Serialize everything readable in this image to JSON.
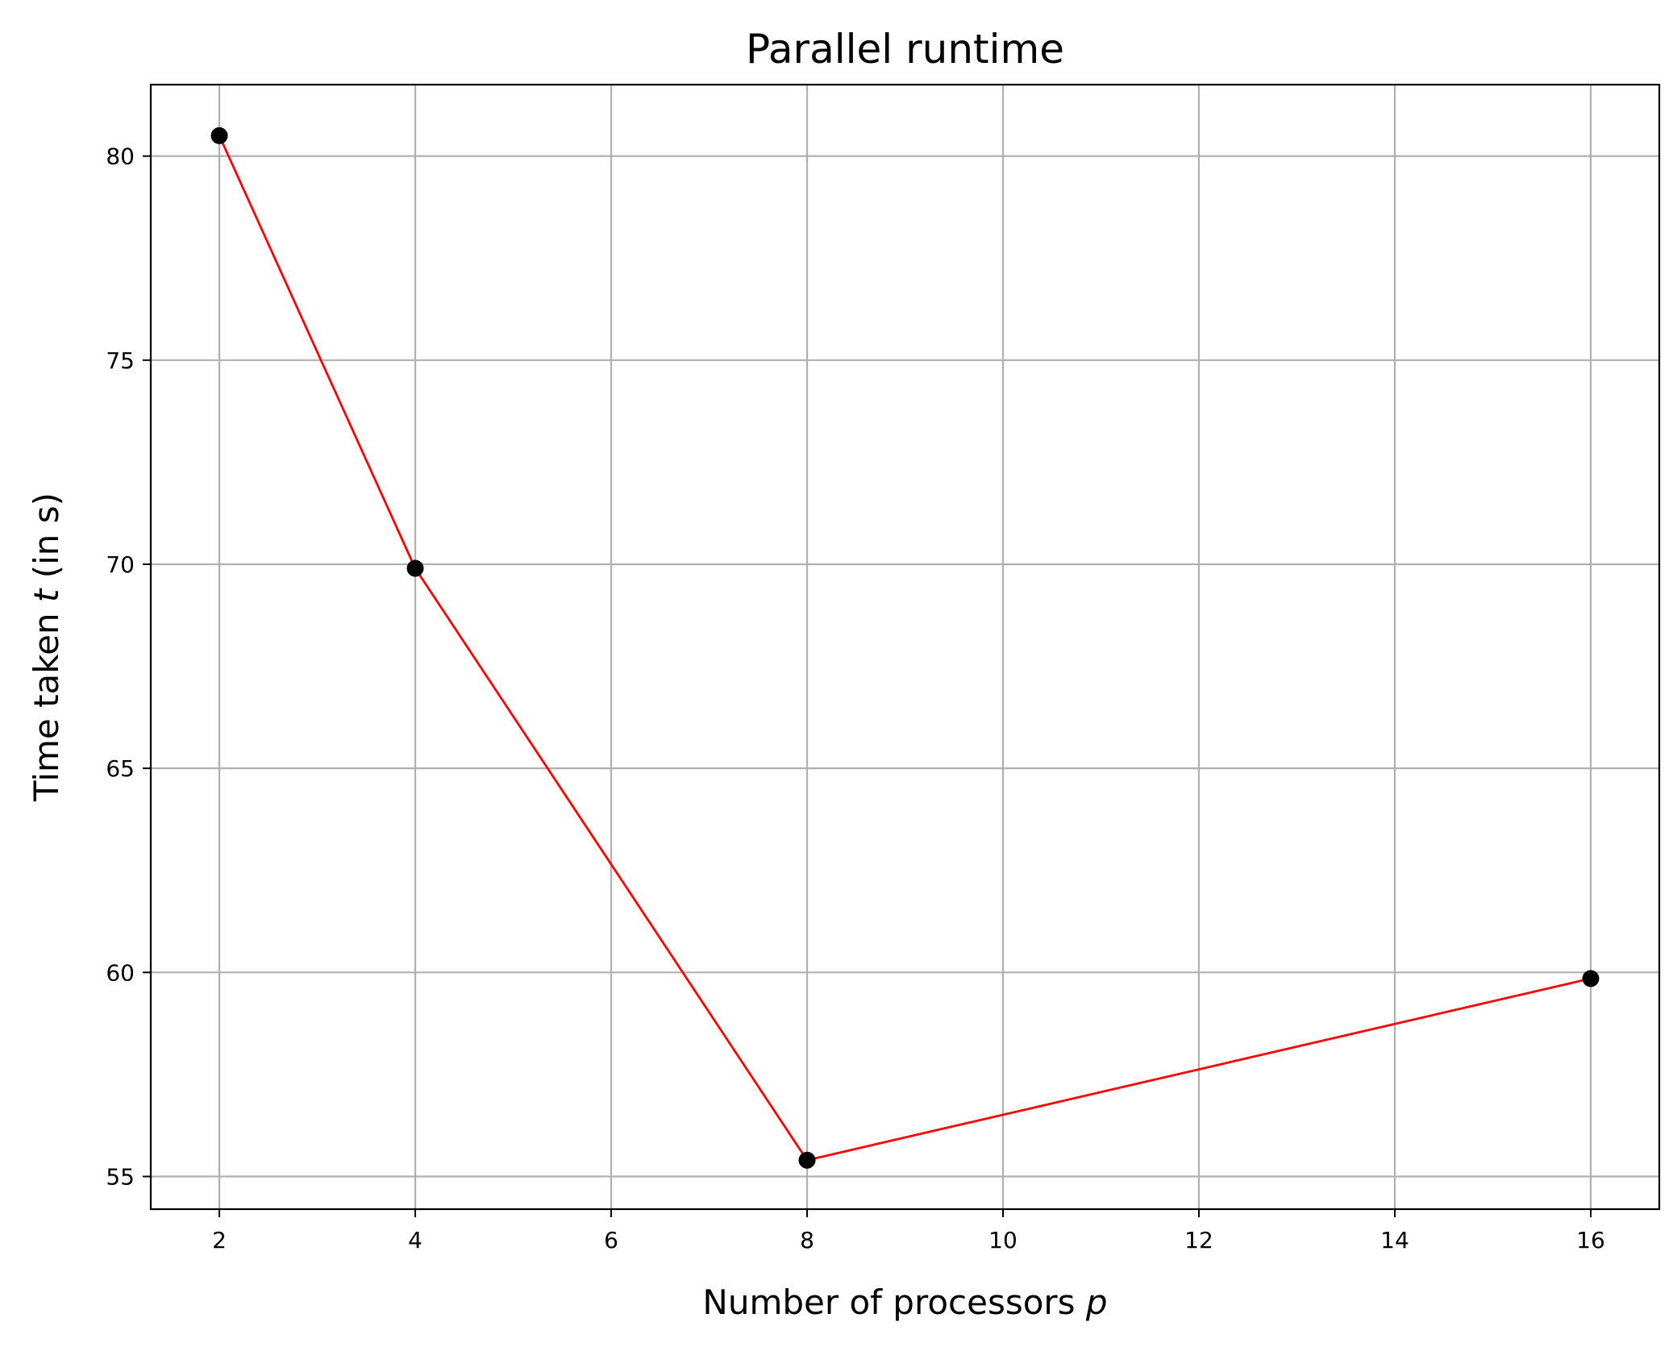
{
  "chart_data": {
    "type": "line",
    "title": "Parallel runtime",
    "xlabel": {
      "prefix": "Number of processors ",
      "var": "p",
      "suffix": ""
    },
    "ylabel": {
      "prefix": "Time taken ",
      "var": "t",
      "suffix": " (in s)"
    },
    "xlim": [
      1.3,
      16.7
    ],
    "ylim": [
      54.2,
      81.75
    ],
    "xticks": [
      2,
      4,
      6,
      8,
      10,
      12,
      14,
      16
    ],
    "yticks": [
      55,
      60,
      65,
      70,
      75,
      80
    ],
    "grid": true,
    "series": [
      {
        "x": [
          2,
          4,
          8,
          16
        ],
        "y": [
          80.5,
          69.9,
          55.4,
          59.85
        ],
        "line_color": "#ff0000",
        "marker_color": "#000000"
      }
    ]
  }
}
